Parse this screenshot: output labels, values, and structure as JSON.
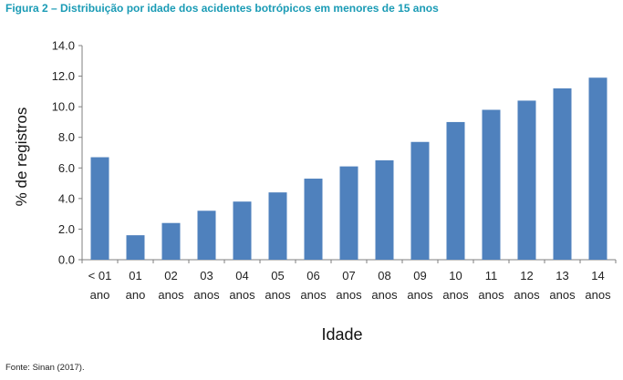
{
  "figure_title": "Figura 2 – Distribuição por idade dos acidentes botrópicos em menores de 15 anos",
  "source": "Fonte: Sinan (2017).",
  "colors": {
    "bar": "#4f81bd",
    "title": "#1a9bb5",
    "axis": "#7f7f7f"
  },
  "chart_data": {
    "type": "bar",
    "title": "",
    "xlabel": "Idade",
    "ylabel": "% de registros",
    "ylim": [
      0,
      14
    ],
    "yticks": [
      "0.0",
      "2.0",
      "4.0",
      "6.0",
      "8.0",
      "10.0",
      "12.0",
      "14.0"
    ],
    "grid": false,
    "categories": [
      [
        "< 01",
        "ano"
      ],
      [
        "01",
        "ano"
      ],
      [
        "02",
        "anos"
      ],
      [
        "03",
        "anos"
      ],
      [
        "04",
        "anos"
      ],
      [
        "05",
        "anos"
      ],
      [
        "06",
        "anos"
      ],
      [
        "07",
        "anos"
      ],
      [
        "08",
        "anos"
      ],
      [
        "09",
        "anos"
      ],
      [
        "10",
        "anos"
      ],
      [
        "11",
        "anos"
      ],
      [
        "12",
        "anos"
      ],
      [
        "13",
        "anos"
      ],
      [
        "14",
        "anos"
      ]
    ],
    "values": [
      6.7,
      1.6,
      2.4,
      3.2,
      3.8,
      4.4,
      5.3,
      6.1,
      6.5,
      7.7,
      9.0,
      9.8,
      10.4,
      11.2,
      11.9
    ]
  }
}
